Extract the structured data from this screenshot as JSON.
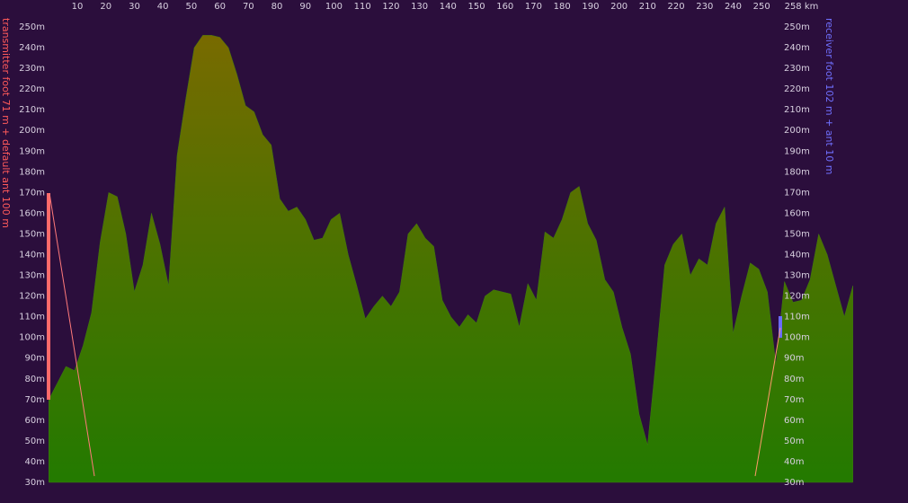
{
  "chart_data": {
    "type": "area",
    "transmitter_label": "transmitter foot 71 m + default ant 100 m",
    "receiver_label": "receiver foot 102 m + ant 10 m",
    "x": [
      0,
      3,
      6,
      9,
      12,
      15,
      18,
      21,
      24,
      27,
      30,
      33,
      36,
      39,
      42,
      45,
      48,
      51,
      54,
      57,
      60,
      63,
      66,
      69,
      72,
      75,
      78,
      81,
      84,
      87,
      90,
      93,
      96,
      99,
      102,
      105,
      108,
      111,
      114,
      117,
      120,
      123,
      126,
      129,
      132,
      135,
      138,
      141,
      144,
      147,
      150,
      153,
      156,
      159,
      162,
      165,
      168,
      171,
      174,
      177,
      180,
      183,
      186,
      189,
      192,
      195,
      198,
      201,
      204,
      207,
      210,
      213,
      216,
      219,
      222,
      225,
      228,
      231,
      234,
      237,
      240,
      243,
      246,
      249,
      252,
      255,
      258,
      261,
      264,
      267,
      270,
      273,
      276,
      279,
      282
    ],
    "values": [
      70,
      78,
      86,
      84,
      96,
      112,
      146,
      170,
      168,
      150,
      122,
      135,
      160,
      145,
      125,
      188,
      215,
      240,
      246,
      246,
      245,
      240,
      227,
      212,
      209,
      198,
      193,
      167,
      161,
      163,
      157,
      147,
      148,
      157,
      160,
      140,
      125,
      109,
      115,
      120,
      115,
      122,
      150,
      155,
      148,
      144,
      118,
      110,
      105,
      111,
      107,
      120,
      123,
      122,
      121,
      105,
      126,
      118,
      151,
      148,
      157,
      170,
      173,
      155,
      147,
      128,
      122,
      105,
      92,
      63,
      48,
      90,
      135,
      145,
      150,
      130,
      138,
      135,
      155,
      163,
      102,
      120,
      136,
      133,
      122,
      87,
      127,
      117,
      118,
      128,
      150,
      140,
      125,
      110,
      125
    ],
    "xlim": [
      0,
      284.3
    ],
    "xticks": [
      10,
      20,
      30,
      40,
      50,
      60,
      70,
      80,
      90,
      100,
      110,
      120,
      130,
      140,
      150,
      160,
      170,
      180,
      190,
      200,
      210,
      220,
      230,
      240,
      250,
      {
        "value": 258,
        "label": "258 km"
      }
    ],
    "ylim": [
      30,
      250
    ],
    "yticks": [
      {
        "value": 30,
        "label": "30m"
      },
      {
        "value": 40,
        "label": "40m"
      },
      {
        "value": 50,
        "label": "50m"
      },
      {
        "value": 60,
        "label": "60m"
      },
      {
        "value": 70,
        "label": "70m"
      },
      {
        "value": 80,
        "label": "80m"
      },
      {
        "value": 90,
        "label": "90m"
      },
      {
        "value": 100,
        "label": "100m"
      },
      {
        "value": 110,
        "label": "110m"
      },
      {
        "value": 120,
        "label": "120m"
      },
      {
        "value": 130,
        "label": "130m"
      },
      {
        "value": 140,
        "label": "140m"
      },
      {
        "value": 150,
        "label": "150m"
      },
      {
        "value": 160,
        "label": "160m"
      },
      {
        "value": 170,
        "label": "170m"
      },
      {
        "value": 180,
        "label": "180m"
      },
      {
        "value": 190,
        "label": "190m"
      },
      {
        "value": 200,
        "label": "200m"
      },
      {
        "value": 210,
        "label": "210m"
      },
      {
        "value": 220,
        "label": "220m"
      },
      {
        "value": 230,
        "label": "230m"
      },
      {
        "value": 240,
        "label": "240m"
      },
      {
        "value": 250,
        "label": "250m"
      }
    ]
  }
}
